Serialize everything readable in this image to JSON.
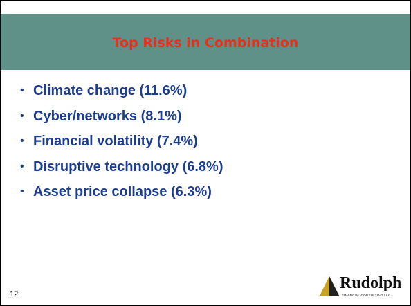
{
  "header": {
    "title": "Top Risks in Combination"
  },
  "bullets": [
    "Climate change (11.6%)",
    "Cyber/networks (8.1%)",
    "Financial volatility (7.4%)",
    "Disruptive technology (6.8%)",
    "Asset price collapse (6.3%)"
  ],
  "footer": {
    "page_number": "12",
    "logo_name": "Rudolph",
    "logo_tagline": "FINANCIAL CONSULTING LLC"
  }
}
